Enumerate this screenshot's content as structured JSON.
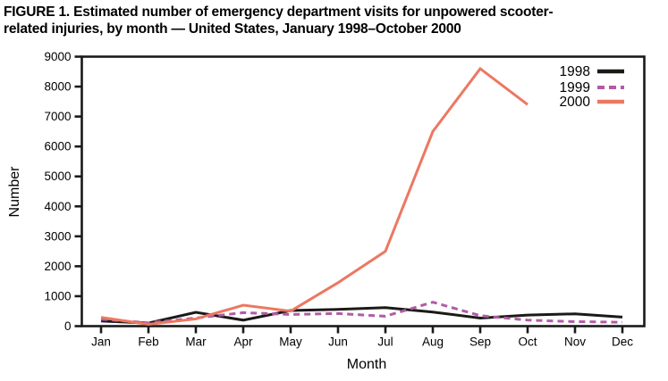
{
  "figure": {
    "title_line1": "FIGURE 1. Estimated number of emergency department visits for unpowered scooter-",
    "title_line2": "related injuries, by month — United States, January 1998–October 2000"
  },
  "chart_data": {
    "type": "line",
    "title": "FIGURE 1. Estimated number of emergency department visits for unpowered scooter-related injuries, by month — United States, January 1998–October 2000",
    "xlabel": "Month",
    "ylabel": "Number",
    "ylim": [
      0,
      9000
    ],
    "ytick_interval": 1000,
    "grid": false,
    "legend_position": "top-right",
    "frame": true,
    "categories": [
      "Jan",
      "Feb",
      "Mar",
      "Apr",
      "May",
      "Jun",
      "Jul",
      "Aug",
      "Sep",
      "Oct",
      "Nov",
      "Dec"
    ],
    "series": [
      {
        "name": "1998",
        "color": "#1c1a17",
        "style": "solid",
        "values": [
          170,
          100,
          460,
          200,
          520,
          560,
          620,
          470,
          270,
          370,
          410,
          300
        ]
      },
      {
        "name": "1999",
        "color": "#b25ba6",
        "style": "dashed",
        "values": [
          230,
          110,
          270,
          450,
          390,
          420,
          330,
          800,
          350,
          200,
          150,
          130
        ]
      },
      {
        "name": "2000",
        "color": "#ec7861",
        "style": "solid",
        "values": [
          290,
          60,
          240,
          700,
          500,
          1450,
          2500,
          6500,
          8600,
          7400,
          null,
          null
        ]
      }
    ]
  },
  "colors": {
    "axis": "#1a1a1a",
    "text": "#000000",
    "background": "#ffffff"
  }
}
